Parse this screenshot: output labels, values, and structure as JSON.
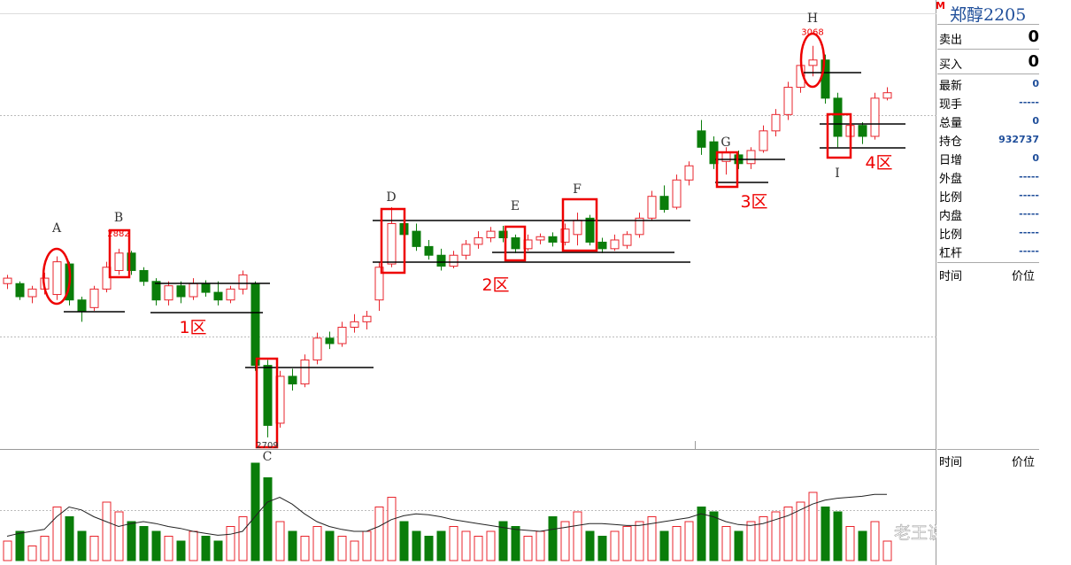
{
  "instrument": "郑醇2205",
  "marker": "M",
  "quote": [
    {
      "label": "卖出",
      "value": 0
    },
    {
      "label": "买入",
      "value": 0
    }
  ],
  "stats": [
    {
      "label": "最新",
      "value": 0
    },
    {
      "label": "现手",
      "value": "-----"
    },
    {
      "label": "总量",
      "value": 0
    },
    {
      "label": "持仓",
      "value": 932737
    },
    {
      "label": "日增",
      "value": 0
    },
    {
      "label": "外盘",
      "value": "-----"
    },
    {
      "label": "比例",
      "value": "-----"
    },
    {
      "label": "内盘",
      "value": "-----"
    },
    {
      "label": "比例",
      "value": "-----"
    },
    {
      "label": "杠杆",
      "value": "-----"
    }
  ],
  "ticks_header": [
    "时间",
    "价位"
  ],
  "ticks_header_2": [
    "时间",
    "价位"
  ],
  "kline": {
    "ylim": [
      2700,
      3110
    ],
    "up_color": "#e8242c",
    "down_color": "#0a7d0a",
    "candles": [
      [
        2850,
        2858,
        2845,
        2855
      ],
      [
        2850,
        2852,
        2835,
        2838
      ],
      [
        2838,
        2848,
        2832,
        2845
      ],
      [
        2845,
        2860,
        2840,
        2855
      ],
      [
        2840,
        2875,
        2835,
        2870
      ],
      [
        2868,
        2870,
        2830,
        2835
      ],
      [
        2835,
        2838,
        2815,
        2825
      ],
      [
        2828,
        2848,
        2825,
        2845
      ],
      [
        2845,
        2870,
        2842,
        2865
      ],
      [
        2862,
        2882,
        2858,
        2878
      ],
      [
        2878,
        2880,
        2858,
        2862
      ],
      [
        2862,
        2865,
        2848,
        2852
      ],
      [
        2852,
        2855,
        2830,
        2835
      ],
      [
        2835,
        2852,
        2830,
        2848
      ],
      [
        2848,
        2852,
        2832,
        2838
      ],
      [
        2838,
        2855,
        2835,
        2850
      ],
      [
        2850,
        2853,
        2838,
        2842
      ],
      [
        2842,
        2852,
        2830,
        2835
      ],
      [
        2835,
        2848,
        2832,
        2845
      ],
      [
        2845,
        2862,
        2840,
        2858
      ],
      [
        2850,
        2852,
        2770,
        2775
      ],
      [
        2775,
        2780,
        2709,
        2720
      ],
      [
        2722,
        2770,
        2718,
        2765
      ],
      [
        2765,
        2772,
        2752,
        2758
      ],
      [
        2758,
        2785,
        2755,
        2780
      ],
      [
        2780,
        2805,
        2776,
        2800
      ],
      [
        2800,
        2806,
        2790,
        2795
      ],
      [
        2795,
        2815,
        2792,
        2810
      ],
      [
        2810,
        2822,
        2805,
        2815
      ],
      [
        2815,
        2825,
        2808,
        2820
      ],
      [
        2835,
        2870,
        2825,
        2865
      ],
      [
        2868,
        2920,
        2865,
        2905
      ],
      [
        2905,
        2910,
        2890,
        2895
      ],
      [
        2898,
        2905,
        2880,
        2884
      ],
      [
        2884,
        2890,
        2872,
        2876
      ],
      [
        2876,
        2882,
        2862,
        2866
      ],
      [
        2866,
        2880,
        2864,
        2876
      ],
      [
        2876,
        2890,
        2872,
        2886
      ],
      [
        2886,
        2898,
        2882,
        2892
      ],
      [
        2892,
        2902,
        2888,
        2898
      ],
      [
        2898,
        2903,
        2888,
        2892
      ],
      [
        2892,
        2895,
        2878,
        2882
      ],
      [
        2882,
        2895,
        2880,
        2890
      ],
      [
        2890,
        2896,
        2886,
        2893
      ],
      [
        2893,
        2897,
        2884,
        2888
      ],
      [
        2888,
        2905,
        2885,
        2900
      ],
      [
        2895,
        2915,
        2885,
        2908
      ],
      [
        2910,
        2913,
        2885,
        2888
      ],
      [
        2888,
        2892,
        2878,
        2882
      ],
      [
        2882,
        2895,
        2880,
        2890
      ],
      [
        2885,
        2898,
        2882,
        2895
      ],
      [
        2895,
        2915,
        2892,
        2910
      ],
      [
        2910,
        2935,
        2908,
        2930
      ],
      [
        2930,
        2940,
        2915,
        2918
      ],
      [
        2920,
        2950,
        2918,
        2945
      ],
      [
        2945,
        2962,
        2940,
        2958
      ],
      [
        2990,
        3000,
        2968,
        2975
      ],
      [
        2980,
        2985,
        2955,
        2960
      ],
      [
        2962,
        2975,
        2950,
        2970
      ],
      [
        2968,
        2972,
        2955,
        2960
      ],
      [
        2960,
        2975,
        2955,
        2972
      ],
      [
        2972,
        2995,
        2970,
        2990
      ],
      [
        2990,
        3010,
        2985,
        3005
      ],
      [
        3005,
        3035,
        3000,
        3030
      ],
      [
        3030,
        3055,
        3025,
        3050
      ],
      [
        3050,
        3068,
        3040,
        3055
      ],
      [
        3055,
        3060,
        3015,
        3020
      ],
      [
        3020,
        3025,
        2975,
        2985
      ],
      [
        2985,
        3000,
        2980,
        2995
      ],
      [
        2995,
        2998,
        2978,
        2985
      ],
      [
        2985,
        3025,
        2982,
        3020
      ],
      [
        3020,
        3030,
        3018,
        3025
      ]
    ],
    "letters": [
      "A",
      "B",
      "C",
      "D",
      "E",
      "F",
      "G",
      "H",
      "I"
    ],
    "peaks": [
      2882,
      2709,
      3068
    ],
    "zones": [
      "1区",
      "2区",
      "3区",
      "4区"
    ]
  },
  "volume": {
    "ylim": [
      0,
      110
    ],
    "values": [
      20,
      30,
      15,
      25,
      55,
      45,
      30,
      25,
      60,
      50,
      40,
      35,
      30,
      25,
      20,
      30,
      25,
      20,
      35,
      45,
      100,
      85,
      40,
      30,
      25,
      35,
      30,
      25,
      20,
      30,
      55,
      65,
      40,
      30,
      25,
      30,
      35,
      30,
      25,
      30,
      40,
      35,
      25,
      30,
      45,
      40,
      50,
      30,
      25,
      30,
      35,
      40,
      45,
      30,
      35,
      40,
      55,
      50,
      35,
      30,
      40,
      45,
      50,
      55,
      60,
      70,
      55,
      50,
      35,
      30,
      40,
      20
    ],
    "ma": [
      25,
      28,
      30,
      32,
      45,
      55,
      52,
      45,
      40,
      35,
      38,
      40,
      38,
      35,
      33,
      30,
      28,
      26,
      27,
      30,
      45,
      60,
      65,
      58,
      48,
      40,
      35,
      32,
      30,
      30,
      35,
      42,
      46,
      48,
      47,
      45,
      42,
      40,
      38,
      36,
      34,
      32,
      31,
      30,
      32,
      34,
      36,
      38,
      38,
      37,
      36,
      36,
      38,
      40,
      42,
      44,
      48,
      45,
      40,
      37,
      36,
      38,
      42,
      46,
      52,
      58,
      62,
      64,
      65,
      66,
      68,
      68
    ]
  },
  "watermark": "老王说趋势美猴王"
}
